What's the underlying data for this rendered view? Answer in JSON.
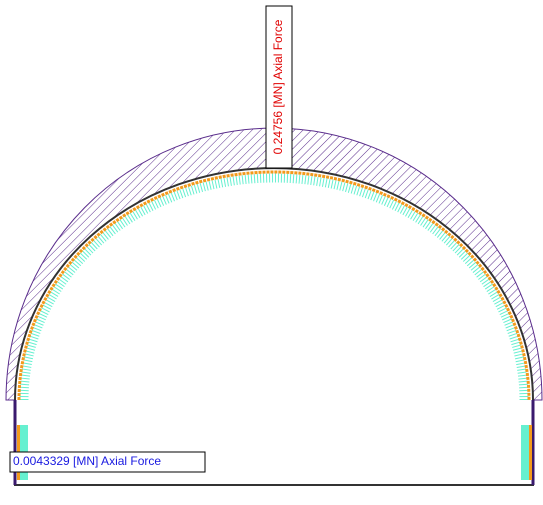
{
  "labels": [
    {
      "text": "0.24756 [MN] Axial Force"
    },
    {
      "text": "0.0043329 [MN] Axial Force"
    }
  ]
}
